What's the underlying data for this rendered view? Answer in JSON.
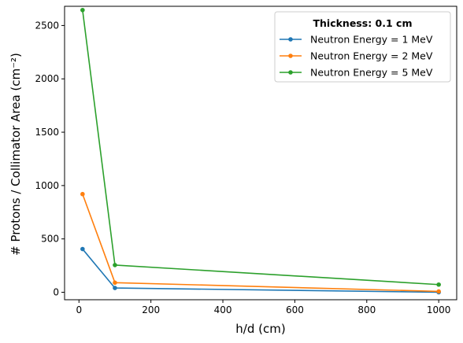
{
  "chart_data": {
    "type": "line",
    "title": "",
    "xlabel": "h/d (cm)",
    "ylabel": "# Protons / Collimator Area (cm⁻²)",
    "xlim": [
      -40,
      1050
    ],
    "ylim": [
      -70,
      2680
    ],
    "xticks": [
      0,
      200,
      400,
      600,
      800,
      1000
    ],
    "yticks": [
      0,
      500,
      1000,
      1500,
      2000,
      2500
    ],
    "grid": false,
    "legend": {
      "title": "Thickness: 0.1 cm",
      "placement": "top-right"
    },
    "x": [
      10,
      100,
      1000
    ],
    "series": [
      {
        "name": "Neutron Energy = 1 MeV",
        "color": "#1f77b4",
        "values": [
          405,
          40,
          0
        ]
      },
      {
        "name": "Neutron Energy = 2 MeV",
        "color": "#ff7f0e",
        "values": [
          920,
          90,
          8
        ]
      },
      {
        "name": "Neutron Energy = 5 MeV",
        "color": "#2ca02c",
        "values": [
          2645,
          255,
          72
        ]
      }
    ]
  }
}
